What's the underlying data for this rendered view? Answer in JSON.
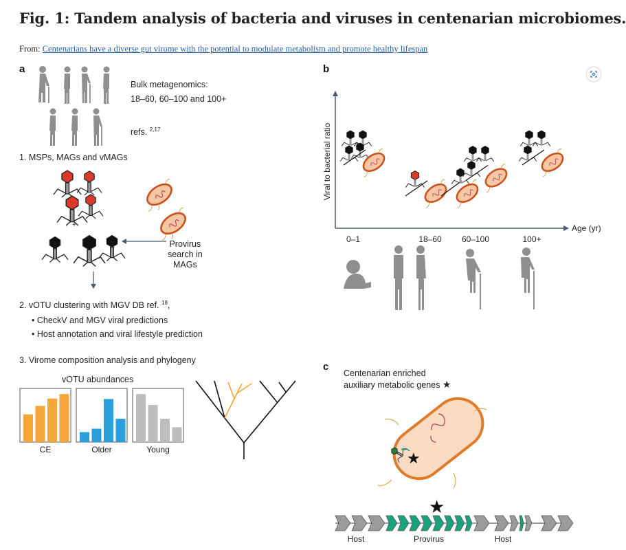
{
  "figure": {
    "title": "Fig. 1: Tandem analysis of bacteria and viruses in centenarian microbiomes.",
    "from_label": "From: ",
    "source_link": "Centenarians have a diverse gut virome with the potential to modulate metabolism and promote healthy lifespan"
  },
  "panel_a": {
    "letter": "a",
    "bulk_title": "Bulk metagenomics:",
    "bulk_groups": "18–60, 60–100 and 100+",
    "refs_prefix": "refs. ",
    "refs_sup": "2,17",
    "step1": "1. MSPs, MAGs and vMAGs",
    "plus": "+",
    "provirus_lines": [
      "Provirus",
      "search in",
      "MAGs"
    ],
    "step2_prefix": "2. vOTU clustering with MGV DB ref. ",
    "step2_sup": "18",
    "step2_suffix": ",",
    "bullets": [
      "• CheckV and MGV viral predictions",
      "• Host annotation and viral lifestyle prediction"
    ],
    "step3": "3. Virome composition analysis and phylogeny",
    "abundance_title": "vOTU abundances",
    "groups": [
      {
        "label": "CE",
        "color": "#f5a63a",
        "values": [
          0.56,
          0.73,
          0.88,
          0.97
        ]
      },
      {
        "label": "Older",
        "color": "#2b9fdc",
        "values": [
          0.2,
          0.27,
          0.87,
          0.47
        ]
      },
      {
        "label": "Young",
        "color": "#bdbdbd",
        "values": [
          0.97,
          0.75,
          0.47,
          0.3
        ]
      }
    ]
  },
  "panel_b": {
    "letter": "b",
    "ylabel": "Viral to bacterial ratio",
    "xlabel": "Age (yr)",
    "ticks": [
      "0–1",
      "18–60",
      "60–100",
      "100+"
    ],
    "relative_level": [
      0.6,
      0.3,
      0.45,
      0.6
    ]
  },
  "panel_c": {
    "letter": "c",
    "caption_lines": [
      "Centenarian enriched",
      "auxiliary metabolic genes"
    ],
    "star_legend": "★",
    "genome_labels": [
      "Host",
      "Provirus",
      "Host"
    ]
  },
  "colors": {
    "orange": "#f5a63a",
    "blue": "#2b9fdc",
    "gray": "#bdbdbd",
    "green": "#1aa37a",
    "link": "#1f5fa8",
    "bacteria": "#c9521f",
    "capsid_red": "#d93b2b"
  }
}
